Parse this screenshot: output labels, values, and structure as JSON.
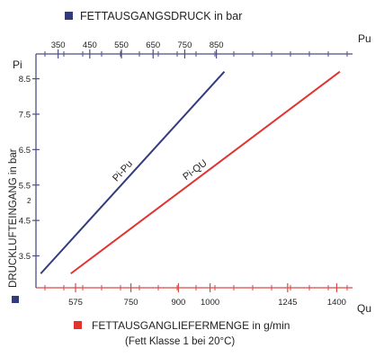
{
  "colors": {
    "navy": "#343a7e",
    "red": "#e2332f",
    "axis_blue": "#4b4f86",
    "axis_red": "#d94a45",
    "text": "#222222"
  },
  "legend": {
    "top_label": "FETTAUSGANGSDRUCK in bar",
    "bottom_label": "FETTAUSGANGLIEFERMENGE in g/min",
    "bottom_note": "(Fett Klasse 1 bei 20°C)",
    "y_axis_label": "DRUCKLUFTEINGANG in bar"
  },
  "chart_data": {
    "type": "line",
    "x_top": {
      "label": "Pu",
      "ticks": [
        "350",
        "450",
        "550",
        "650",
        "750",
        "850"
      ],
      "tick_values": [
        350,
        450,
        550,
        650,
        750,
        850
      ],
      "range": [
        280,
        1280
      ]
    },
    "x_bottom": {
      "label": "Qu",
      "ticks": [
        "575",
        "750",
        "900",
        "1000",
        "1245",
        "1400"
      ],
      "tick_values": [
        575,
        750,
        900,
        1000,
        1245,
        1400
      ],
      "range": [
        450,
        1450
      ]
    },
    "y": {
      "label": "Pi",
      "ticks": [
        "3.5",
        "4.5",
        "5.5",
        "6.5",
        "7.5",
        "8.5"
      ],
      "tick_values": [
        3.5,
        4.5,
        5.5,
        6.5,
        7.5,
        8.5
      ],
      "range": [
        2.6,
        9.2
      ]
    },
    "series": [
      {
        "name": "Pi-Pu",
        "axis": "top",
        "color": "#343a7e",
        "points": [
          [
            295,
            3.0
          ],
          [
            875,
            8.7
          ]
        ]
      },
      {
        "name": "Pi-QU",
        "axis": "bottom",
        "color": "#e2332f",
        "points": [
          [
            560,
            3.0
          ],
          [
            1410,
            8.7
          ]
        ]
      }
    ],
    "small_mark": "2"
  }
}
